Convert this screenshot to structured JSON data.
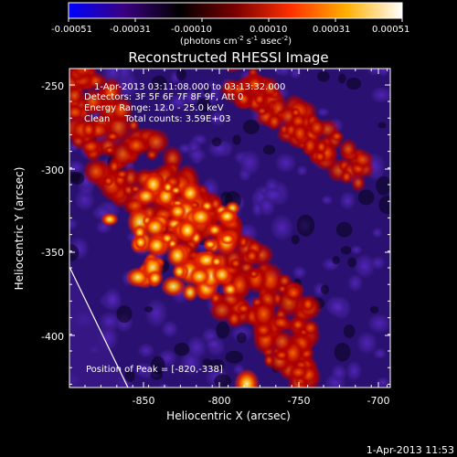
{
  "colorbar": {
    "ticks": [
      "-0.00051",
      "-0.00031",
      "-0.00010",
      "0.00010",
      "0.00031",
      "0.00051"
    ],
    "unit_base": "(photons cm",
    "unit_exp1": "-2",
    "unit_mid": " s",
    "unit_exp2": "-1",
    "unit_asec": " asec",
    "unit_exp3": "-2",
    "unit_end": ")",
    "gradient": [
      "#0000ff",
      "#3a0080",
      "#000000",
      "#7a0000",
      "#ff3000",
      "#ffb000",
      "#ffffff"
    ]
  },
  "image": {
    "title": "Reconstructed RHESSI Image",
    "info_lines": [
      "1-Apr-2013 03:11:08.000 to 03:13:32.000",
      "Detectors: 3F 5F 6F 7F 8F 9F, Att 0",
      "Energy Range: 12.0 - 25.0 keV",
      "Clean     Total counts: 3.59E+03"
    ],
    "peak_label": "Position of Peak = [-820,-338]"
  },
  "axes": {
    "xlabel": "Heliocentric X (arcsec)",
    "ylabel": "Heliocentric Y (arcsec)",
    "xticks": [
      "-850",
      "-800",
      "-750",
      "-700"
    ],
    "yticks": [
      "-250",
      "-300",
      "-350",
      "-400"
    ]
  },
  "footer": {
    "timestamp": "1-Apr-2013 11:53"
  }
}
